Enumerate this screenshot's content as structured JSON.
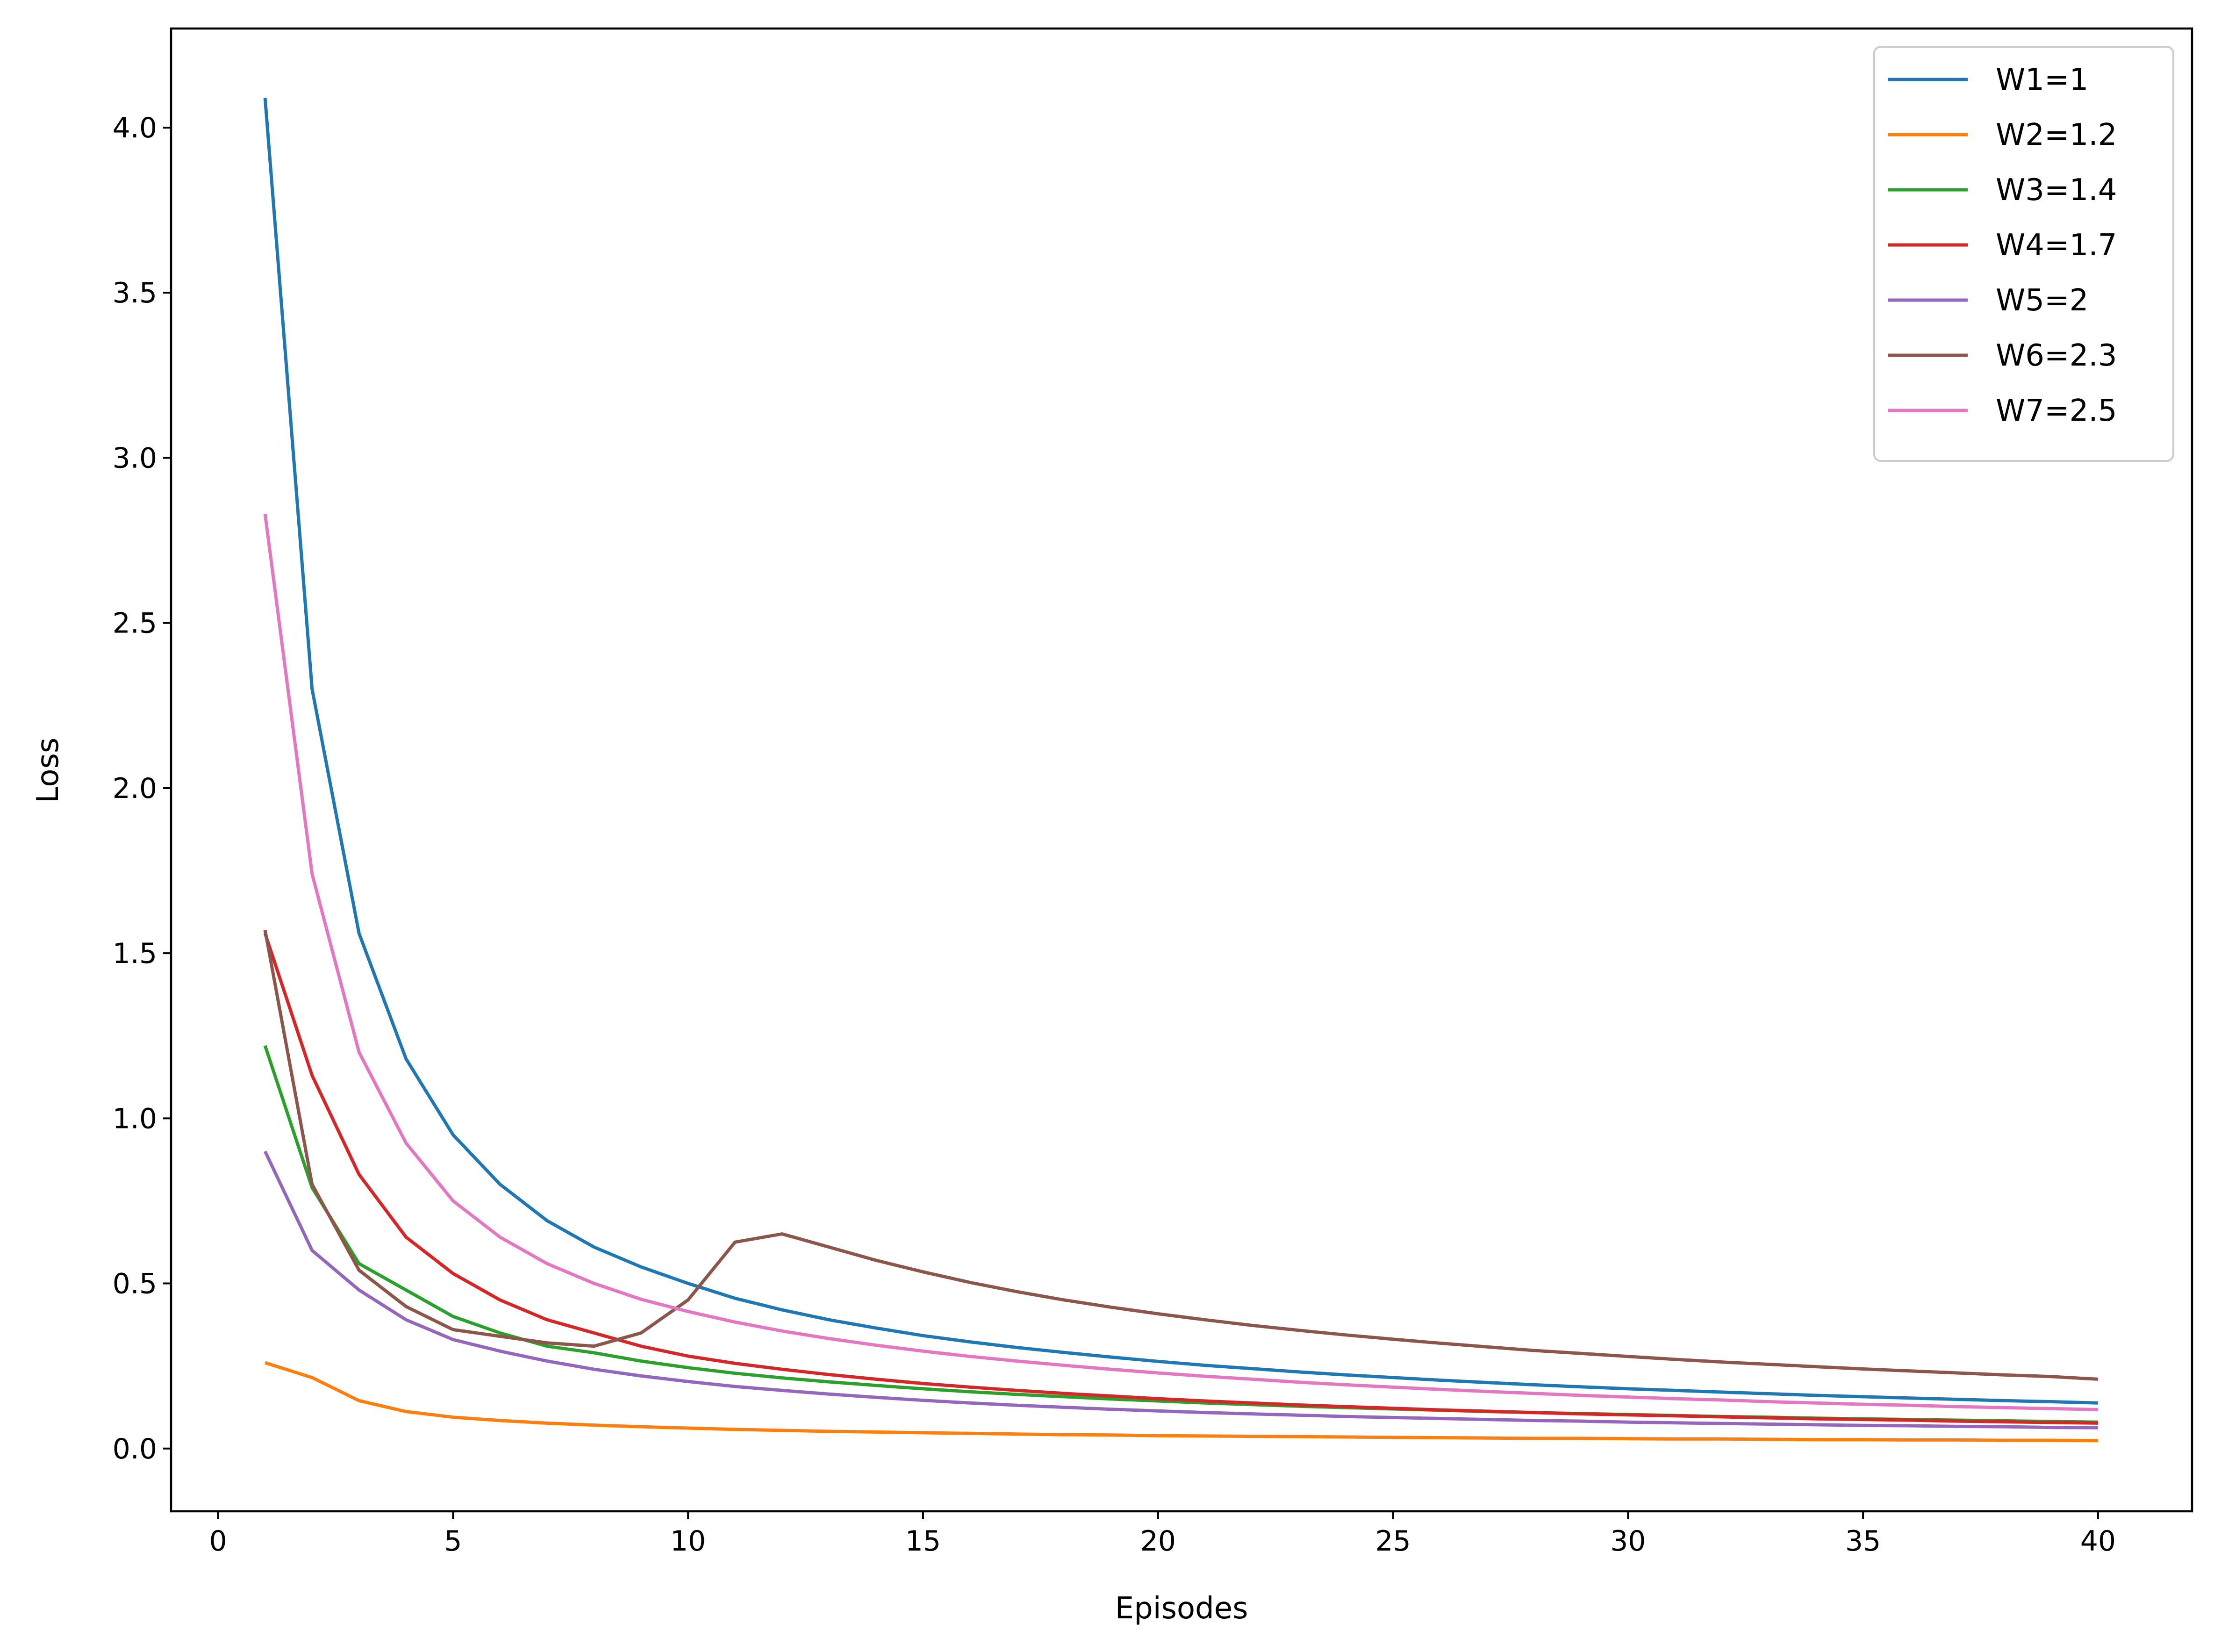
{
  "chart_data": {
    "type": "line",
    "title": "",
    "xlabel": "Episodes",
    "ylabel": "Loss",
    "xlim": [
      -1,
      42
    ],
    "ylim": [
      -0.19,
      4.3
    ],
    "xticks": [
      0,
      5,
      10,
      15,
      20,
      25,
      30,
      35,
      40
    ],
    "xtick_labels": [
      "0",
      "5",
      "10",
      "15",
      "20",
      "25",
      "30",
      "35",
      "40"
    ],
    "yticks": [
      0.0,
      0.5,
      1.0,
      1.5,
      2.0,
      2.5,
      3.0,
      3.5,
      4.0
    ],
    "ytick_labels": [
      "0.0",
      "0.5",
      "1.0",
      "1.5",
      "2.0",
      "2.5",
      "3.0",
      "3.5",
      "4.0"
    ],
    "grid": false,
    "legend_position": "top-right",
    "x": [
      1,
      2,
      3,
      4,
      5,
      6,
      7,
      8,
      9,
      10,
      11,
      12,
      13,
      14,
      15,
      16,
      17,
      18,
      19,
      20,
      21,
      22,
      23,
      24,
      25,
      26,
      27,
      28,
      29,
      30,
      31,
      32,
      33,
      34,
      35,
      36,
      37,
      38,
      39,
      40
    ],
    "series": [
      {
        "name": "W1=1",
        "color": "#1f77b4",
        "values": [
          4.09,
          2.3,
          1.56,
          1.18,
          0.95,
          0.8,
          0.69,
          0.61,
          0.55,
          0.5,
          0.455,
          0.42,
          0.39,
          0.365,
          0.342,
          0.323,
          0.306,
          0.291,
          0.277,
          0.264,
          0.252,
          0.242,
          0.232,
          0.223,
          0.215,
          0.207,
          0.2,
          0.193,
          0.187,
          0.181,
          0.176,
          0.171,
          0.166,
          0.161,
          0.157,
          0.153,
          0.149,
          0.145,
          0.142,
          0.138
        ]
      },
      {
        "name": "W2=1.2",
        "color": "#ff7f0e",
        "values": [
          0.26,
          0.215,
          0.145,
          0.112,
          0.095,
          0.085,
          0.077,
          0.071,
          0.066,
          0.062,
          0.058,
          0.055,
          0.052,
          0.05,
          0.048,
          0.046,
          0.044,
          0.042,
          0.041,
          0.039,
          0.038,
          0.037,
          0.036,
          0.035,
          0.034,
          0.033,
          0.032,
          0.031,
          0.031,
          0.03,
          0.029,
          0.029,
          0.028,
          0.027,
          0.027,
          0.026,
          0.026,
          0.025,
          0.025,
          0.024
        ]
      },
      {
        "name": "W3=1.4",
        "color": "#2ca02c",
        "values": [
          1.22,
          0.79,
          0.56,
          0.48,
          0.4,
          0.35,
          0.31,
          0.29,
          0.265,
          0.245,
          0.228,
          0.214,
          0.202,
          0.191,
          0.181,
          0.172,
          0.164,
          0.157,
          0.15,
          0.144,
          0.138,
          0.133,
          0.128,
          0.124,
          0.12,
          0.116,
          0.112,
          0.109,
          0.106,
          0.103,
          0.1,
          0.097,
          0.095,
          0.092,
          0.09,
          0.088,
          0.086,
          0.084,
          0.082,
          0.08
        ]
      },
      {
        "name": "W4=1.7",
        "color": "#d62728",
        "values": [
          1.56,
          1.13,
          0.83,
          0.64,
          0.53,
          0.45,
          0.39,
          0.35,
          0.31,
          0.28,
          0.258,
          0.24,
          0.224,
          0.21,
          0.197,
          0.186,
          0.176,
          0.167,
          0.159,
          0.151,
          0.144,
          0.138,
          0.132,
          0.127,
          0.122,
          0.117,
          0.113,
          0.109,
          0.105,
          0.102,
          0.099,
          0.096,
          0.093,
          0.09,
          0.088,
          0.086,
          0.083,
          0.081,
          0.079,
          0.077
        ]
      },
      {
        "name": "W5=2",
        "color": "#9467bd",
        "values": [
          0.9,
          0.6,
          0.48,
          0.39,
          0.33,
          0.295,
          0.265,
          0.24,
          0.22,
          0.203,
          0.188,
          0.176,
          0.165,
          0.155,
          0.146,
          0.138,
          0.131,
          0.125,
          0.119,
          0.114,
          0.109,
          0.105,
          0.101,
          0.097,
          0.094,
          0.091,
          0.088,
          0.085,
          0.083,
          0.08,
          0.078,
          0.076,
          0.074,
          0.072,
          0.07,
          0.069,
          0.067,
          0.066,
          0.064,
          0.063
        ]
      },
      {
        "name": "W6=2.3",
        "color": "#8c564b",
        "values": [
          1.57,
          0.8,
          0.54,
          0.43,
          0.36,
          0.34,
          0.32,
          0.31,
          0.35,
          0.45,
          0.625,
          0.65,
          0.61,
          0.57,
          0.535,
          0.503,
          0.475,
          0.45,
          0.428,
          0.408,
          0.39,
          0.373,
          0.358,
          0.344,
          0.331,
          0.319,
          0.308,
          0.297,
          0.288,
          0.279,
          0.27,
          0.262,
          0.255,
          0.248,
          0.241,
          0.235,
          0.229,
          0.223,
          0.218,
          0.21
        ]
      },
      {
        "name": "W7=2.5",
        "color": "#e377c2",
        "values": [
          2.83,
          1.74,
          1.2,
          0.925,
          0.75,
          0.64,
          0.56,
          0.5,
          0.452,
          0.415,
          0.383,
          0.356,
          0.333,
          0.313,
          0.295,
          0.279,
          0.265,
          0.252,
          0.24,
          0.229,
          0.219,
          0.21,
          0.201,
          0.193,
          0.186,
          0.179,
          0.173,
          0.167,
          0.161,
          0.156,
          0.151,
          0.147,
          0.142,
          0.138,
          0.134,
          0.131,
          0.127,
          0.124,
          0.121,
          0.118
        ]
      }
    ]
  }
}
